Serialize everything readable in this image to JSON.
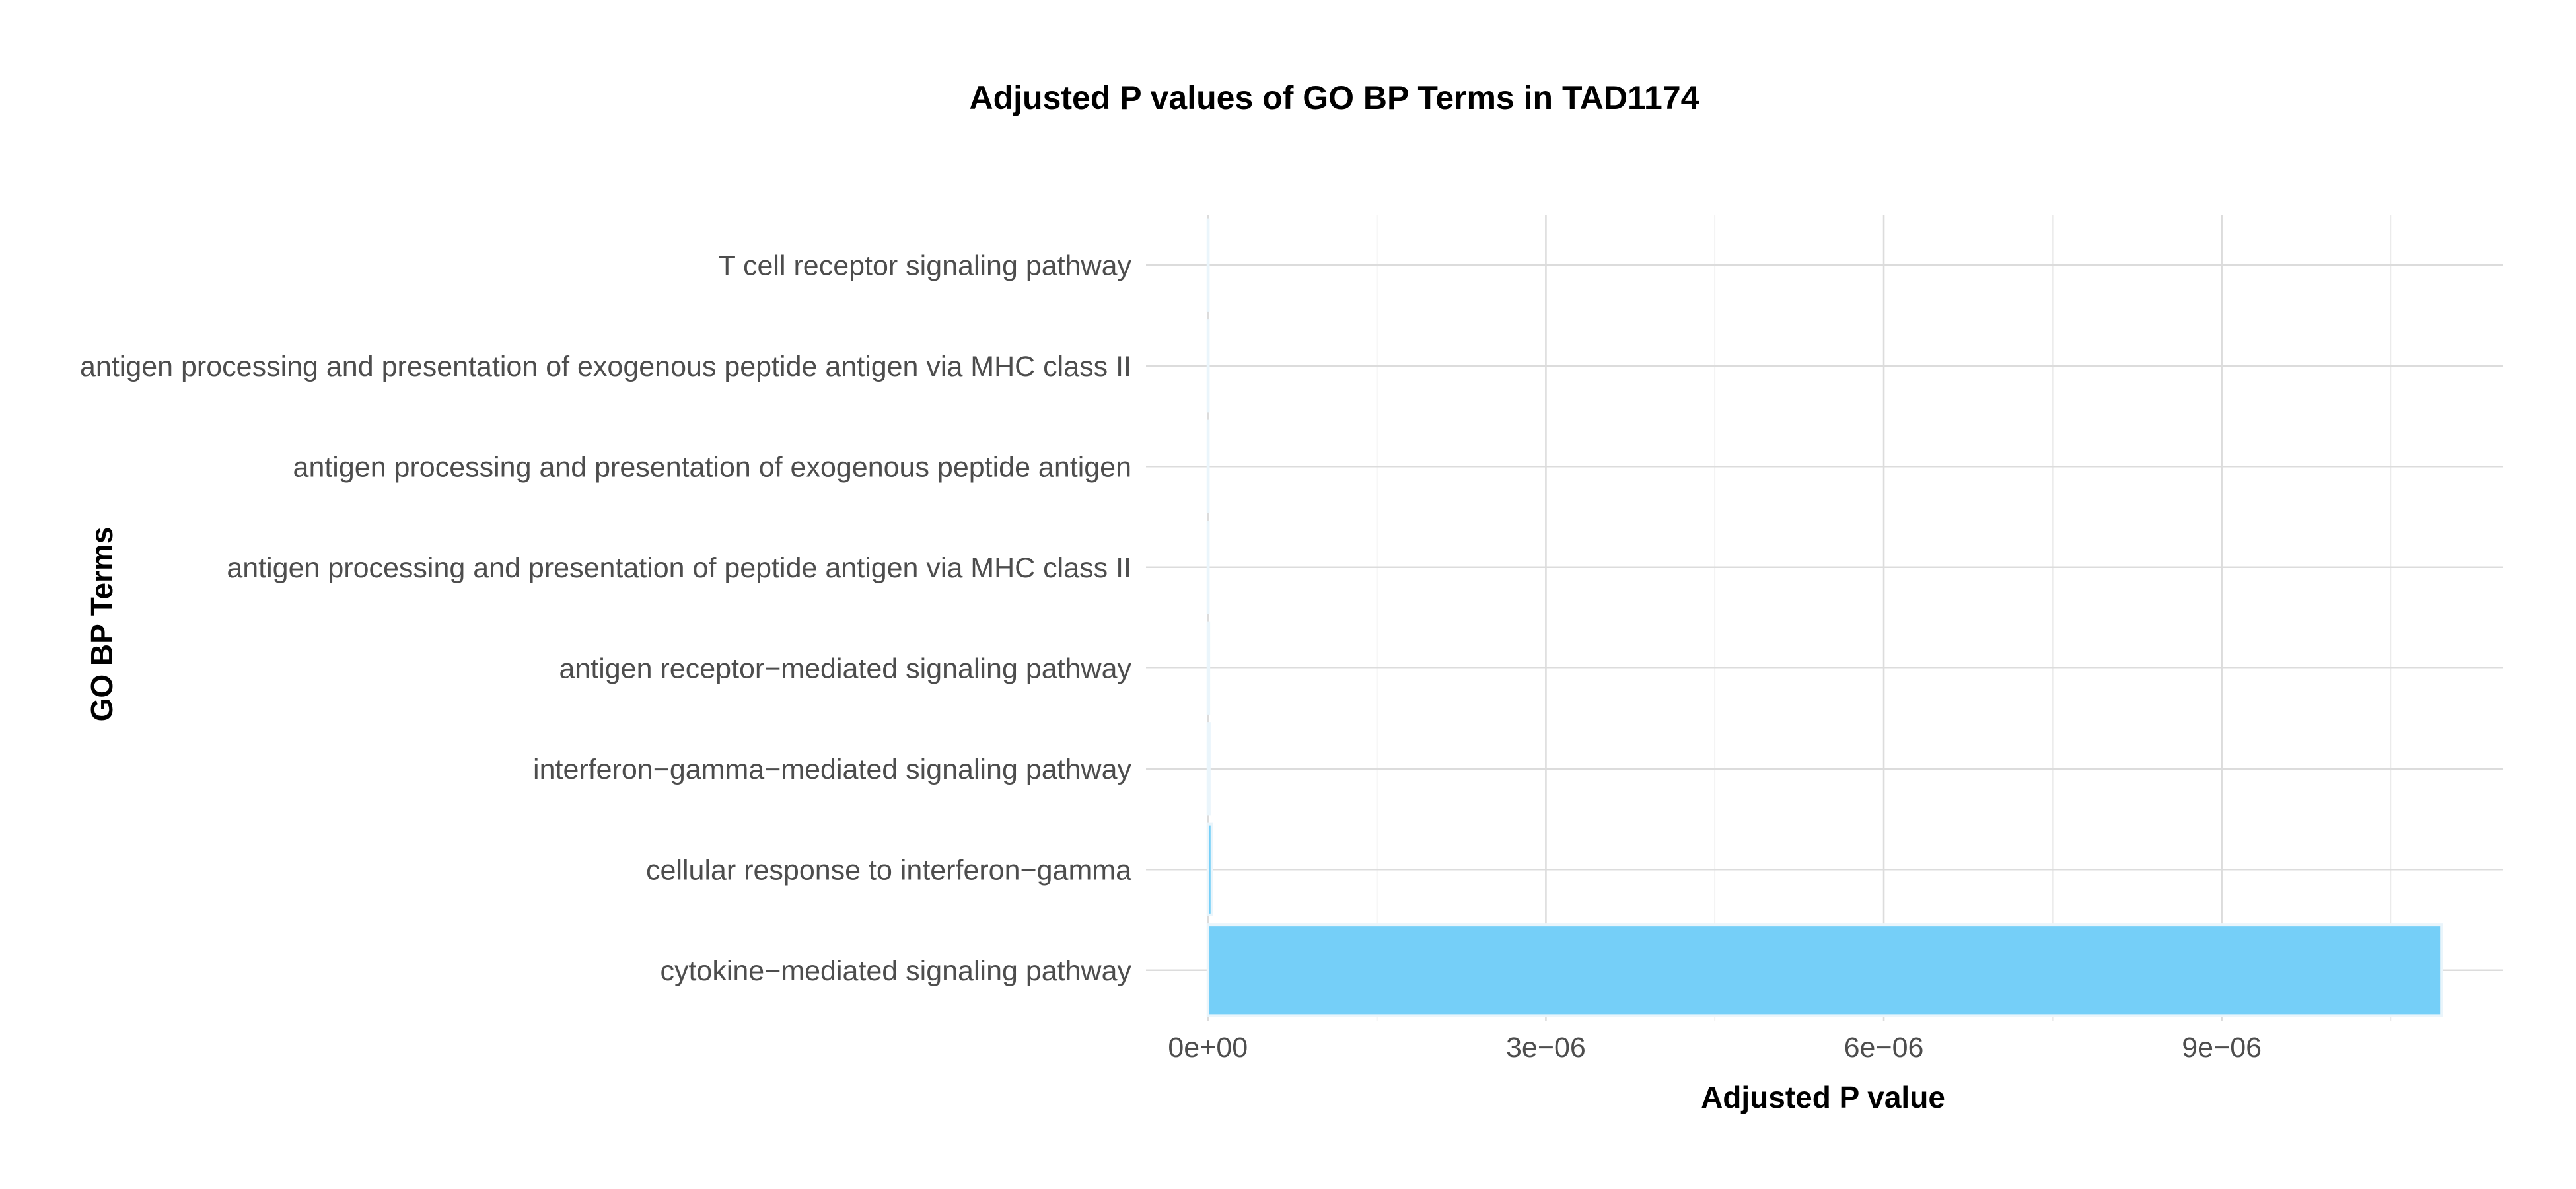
{
  "chart_data": {
    "type": "bar",
    "orientation": "horizontal",
    "title": "Adjusted P values of GO BP Terms in TAD1174",
    "xlabel": "Adjusted P value",
    "ylabel": "GO BP Terms",
    "categories": [
      "T cell receptor signaling pathway",
      "antigen processing and presentation of exogenous peptide antigen via MHC class II",
      "antigen processing and presentation of exogenous peptide antigen",
      "antigen processing and presentation of peptide antigen via MHC class II",
      "antigen receptor−mediated signaling pathway",
      "interferon−gamma−mediated signaling pathway",
      "cellular response to interferon−gamma",
      "cytokine−mediated signaling pathway"
    ],
    "values": [
      1e-09,
      2e-09,
      2e-09,
      3e-09,
      8e-09,
      1.2e-08,
      3.5e-08,
      1.095e-05
    ],
    "xlim": [
      -5.5e-07,
      1.15e-05
    ],
    "xticks": [
      0,
      3e-06,
      6e-06,
      9e-06
    ],
    "xtick_labels": [
      "0e+00",
      "3e−06",
      "6e−06",
      "9e−06"
    ],
    "xminor": [
      1.5e-06,
      4.5e-06,
      7.5e-06,
      1.05e-05
    ],
    "grid": true,
    "bar_color": "#75cff8",
    "bar_edge_color": "#eaf5fb"
  }
}
